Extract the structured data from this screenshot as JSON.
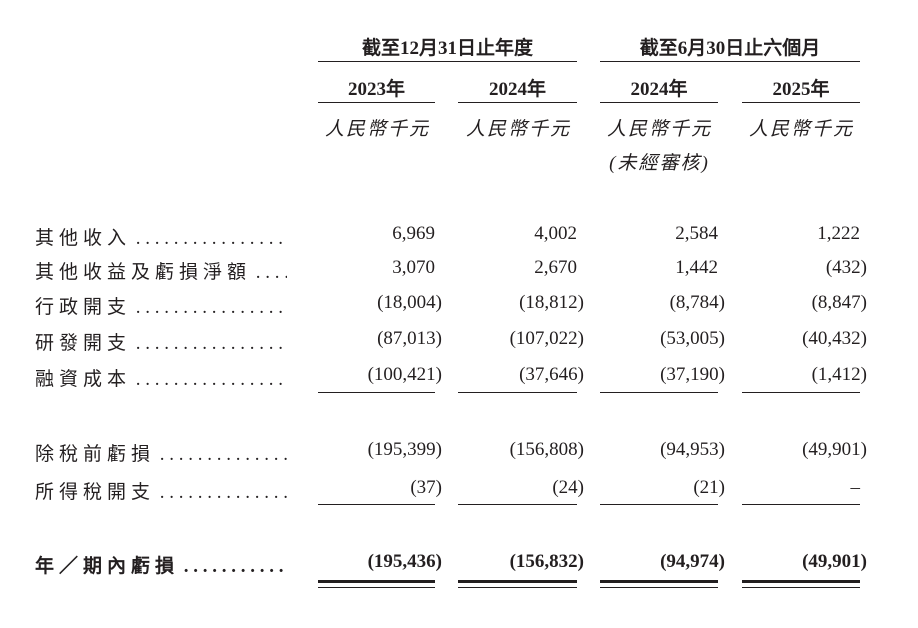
{
  "header": {
    "groups": [
      "截至12月31日止年度",
      "截至6月30日止六個月"
    ],
    "years": [
      "2023年",
      "2024年",
      "2024年",
      "2025年"
    ],
    "units": [
      "人民幣千元",
      "人民幣千元",
      "人民幣千元",
      "人民幣千元"
    ],
    "unaudited_note": "(未經審核)"
  },
  "rows": [
    {
      "label": "其他收入",
      "values": [
        "6,969",
        "4,002",
        "2,584",
        "1,222"
      ]
    },
    {
      "label": "其他收益及虧損淨額",
      "values": [
        "3,070",
        "2,670",
        "1,442",
        "(432)"
      ]
    },
    {
      "label": "行政開支",
      "values": [
        "(18,004)",
        "(18,812)",
        "(8,784)",
        "(8,847)"
      ]
    },
    {
      "label": "研發開支",
      "values": [
        "(87,013)",
        "(107,022)",
        "(53,005)",
        "(40,432)"
      ]
    },
    {
      "label": "融資成本",
      "values": [
        "(100,421)",
        "(37,646)",
        "(37,190)",
        "(1,412)"
      ]
    },
    {
      "label": "除稅前虧損",
      "values": [
        "(195,399)",
        "(156,808)",
        "(94,953)",
        "(49,901)"
      ]
    },
    {
      "label": "所得稅開支",
      "values": [
        "(37)",
        "(24)",
        "(21)",
        "–"
      ]
    },
    {
      "label": "年／期內虧損",
      "values": [
        "(195,436)",
        "(156,832)",
        "(94,974)",
        "(49,901)"
      ]
    }
  ]
}
